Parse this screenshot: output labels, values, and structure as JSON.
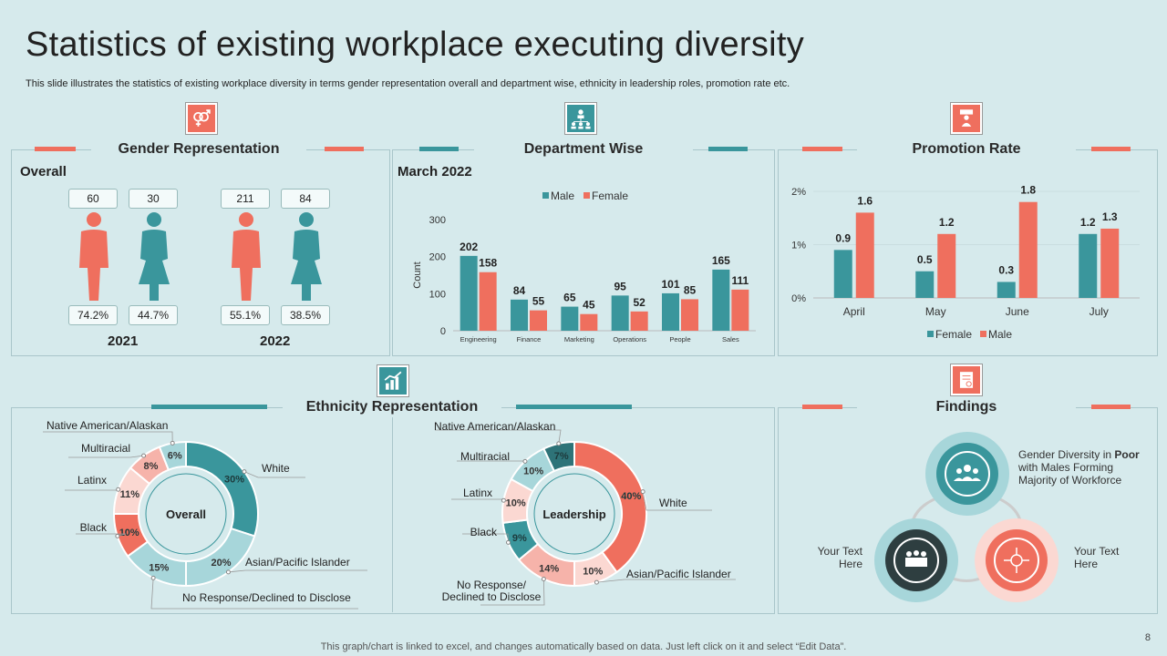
{
  "title": "Statistics  of existing workplace executing diversity",
  "subtitle": "This slide illustrates the statistics of existing workplace diversity in terms gender representation overall and department wise, ethnicity in leadership roles, promotion rate etc.",
  "colors": {
    "teal": "#3a969c",
    "coral": "#ef6f5e",
    "lightcoral": "#f6b3aa",
    "pink": "#fbd8d2",
    "lightteal": "#a7d6da",
    "darkteal": "#2e7378",
    "bg": "#d6eaec"
  },
  "gender": {
    "title": "Gender Representation",
    "subtitle": "Overall",
    "years": [
      {
        "year": "2021",
        "male_count": "60",
        "female_count": "30",
        "male_pct": "74.2%",
        "female_pct": "44.7%"
      },
      {
        "year": "2022",
        "male_count": "211",
        "female_count": "84",
        "male_pct": "55.1%",
        "female_pct": "38.5%"
      }
    ]
  },
  "department": {
    "title": "Department Wise",
    "subtitle": "March 2022"
  },
  "promotion": {
    "title": "Promotion Rate"
  },
  "ethnicity": {
    "title": "Ethnicity Representation"
  },
  "findings": {
    "title": "Findings",
    "top_text_bold": "Poor",
    "top_text": "Gender Diversity in",
    "top_text_rest": "with Males Forming Majority of Workforce",
    "left_text": "Your Text Here",
    "right_text": "Your Text Here"
  },
  "chart_data": [
    {
      "type": "bar",
      "title": "Department Wise",
      "categories": [
        "Engineering",
        "Finance",
        "Marketing",
        "Operations",
        "People",
        "Sales"
      ],
      "series": [
        {
          "name": "Male",
          "values": [
            202,
            84,
            65,
            95,
            101,
            165
          ]
        },
        {
          "name": "Female",
          "values": [
            158,
            55,
            45,
            52,
            85,
            111
          ]
        }
      ],
      "ylabel": "Count",
      "ylim": [
        0,
        300
      ],
      "yticks": [
        0,
        100,
        200,
        300
      ],
      "legend": "top"
    },
    {
      "type": "bar",
      "title": "Promotion Rate",
      "categories": [
        "April",
        "May",
        "June",
        "July"
      ],
      "series": [
        {
          "name": "Female",
          "values": [
            0.9,
            0.5,
            0.3,
            1.2
          ]
        },
        {
          "name": "Male",
          "values": [
            1.6,
            1.2,
            1.8,
            1.3
          ]
        }
      ],
      "ylim": [
        0,
        2
      ],
      "yticks": [
        "0%",
        "1%",
        "2%"
      ],
      "legend": "bottom"
    },
    {
      "type": "pie",
      "title": "Overall",
      "labels": [
        "White",
        "Asian/Pacific Islander",
        "No Response/Declined to Disclose",
        "Black",
        "Latinx",
        "Multiracial",
        "Native American/Alaskan"
      ],
      "values": [
        30,
        20,
        15,
        10,
        11,
        8,
        6
      ]
    },
    {
      "type": "pie",
      "title": "Leadership",
      "labels": [
        "White",
        "Asian/Pacific Islander",
        "No Response/ Declined to Disclose",
        "Black",
        "Latinx",
        "Multiracial",
        "Native American/Alaskan"
      ],
      "values": [
        40,
        10,
        14,
        9,
        10,
        10,
        7
      ]
    }
  ],
  "footer": "This graph/chart is linked to excel,  and changes automatically based on data. Just left click on it and select “Edit Data”.",
  "page_number": "8"
}
